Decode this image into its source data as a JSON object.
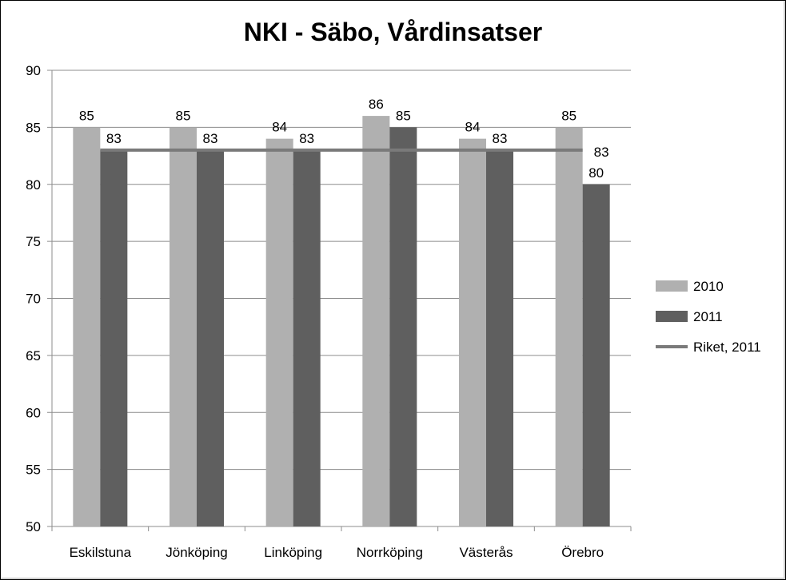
{
  "chart_data": {
    "type": "bar",
    "title": "NKI - Säbo, Vårdinsatser",
    "xlabel": "",
    "ylabel": "",
    "ylim": [
      50,
      90
    ],
    "yticks": [
      50,
      55,
      60,
      65,
      70,
      75,
      80,
      85,
      90
    ],
    "grid": true,
    "legend_position": "right",
    "categories": [
      "Eskilstuna",
      "Jönköping",
      "Linköping",
      "Norrköping",
      "Västerås",
      "Örebro"
    ],
    "series": [
      {
        "name": "2010",
        "type": "bar",
        "color": "#b0b0b0",
        "values": [
          85,
          85,
          84,
          86,
          84,
          85
        ]
      },
      {
        "name": "2011",
        "type": "bar",
        "color": "#5f5f5f",
        "values": [
          83,
          83,
          83,
          85,
          83,
          80
        ]
      },
      {
        "name": "Riket, 2011",
        "type": "line",
        "color": "#7a7a7a",
        "values": [
          83,
          83,
          83,
          83,
          83,
          83
        ]
      }
    ]
  }
}
